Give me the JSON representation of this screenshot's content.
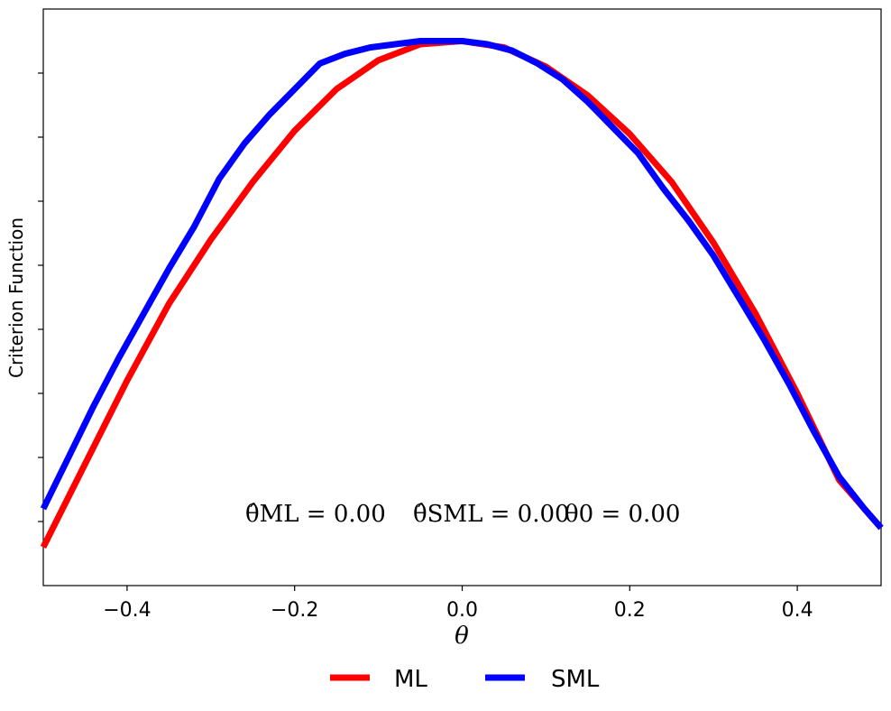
{
  "chart_data": {
    "type": "line",
    "xlabel": "θ",
    "ylabel": "Criterion Function",
    "xlim": [
      -0.5,
      0.5
    ],
    "ylim": [
      -0.1,
      0.8
    ],
    "xticks": [
      -0.4,
      -0.2,
      0.0,
      0.2,
      0.4
    ],
    "xtick_labels": [
      "−0.4",
      "−0.2",
      "0.0",
      "0.2",
      "0.4"
    ],
    "yticks": [
      0.0,
      0.1,
      0.2,
      0.3,
      0.4,
      0.5,
      0.6,
      0.7
    ],
    "ytick_labels_visible": false,
    "grid": false,
    "legend_position": "bottom-center",
    "annotations": [
      "θ̂ML = 0.00",
      "θ̂SML = 0.00",
      "θ0 = 0.00"
    ],
    "series": [
      {
        "name": "ML",
        "color": "#ff0000",
        "x": [
          -0.5,
          -0.45,
          -0.4,
          -0.35,
          -0.3,
          -0.25,
          -0.2,
          -0.15,
          -0.1,
          -0.05,
          0.0,
          0.05,
          0.1,
          0.15,
          0.2,
          0.25,
          0.3,
          0.35,
          0.4,
          0.45,
          0.5
        ],
        "y": [
          -0.04,
          0.09,
          0.22,
          0.34,
          0.44,
          0.53,
          0.61,
          0.675,
          0.72,
          0.745,
          0.75,
          0.74,
          0.71,
          0.665,
          0.605,
          0.53,
          0.435,
          0.325,
          0.2,
          0.065,
          -0.01
        ]
      },
      {
        "name": "SML",
        "color": "#0000ff",
        "x": [
          -0.5,
          -0.47,
          -0.44,
          -0.41,
          -0.38,
          -0.35,
          -0.32,
          -0.29,
          -0.26,
          -0.23,
          -0.2,
          -0.17,
          -0.14,
          -0.11,
          -0.08,
          -0.05,
          -0.02,
          0.0,
          0.03,
          0.06,
          0.09,
          0.12,
          0.15,
          0.18,
          0.21,
          0.24,
          0.27,
          0.3,
          0.33,
          0.36,
          0.39,
          0.42,
          0.45,
          0.48,
          0.5
        ],
        "y": [
          0.02,
          0.1,
          0.18,
          0.255,
          0.325,
          0.395,
          0.46,
          0.535,
          0.59,
          0.635,
          0.675,
          0.715,
          0.73,
          0.74,
          0.745,
          0.75,
          0.75,
          0.75,
          0.745,
          0.735,
          0.715,
          0.69,
          0.655,
          0.615,
          0.575,
          0.52,
          0.47,
          0.415,
          0.35,
          0.285,
          0.215,
          0.14,
          0.07,
          0.02,
          -0.01
        ]
      }
    ]
  }
}
